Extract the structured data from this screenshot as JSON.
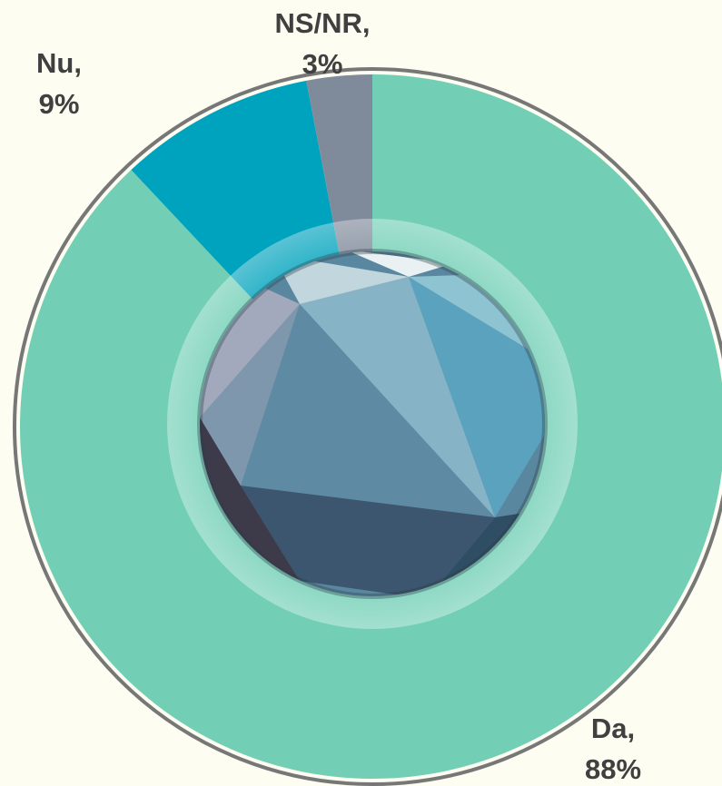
{
  "chart_data": {
    "type": "pie",
    "categories": [
      "Da,",
      "Nu,",
      "NS/NR,"
    ],
    "values": [
      88,
      9,
      3
    ],
    "value_labels": [
      "88%",
      "9%",
      "3%"
    ],
    "colors": [
      "#72cfb6",
      "#00a3bd",
      "#7f8a9b"
    ]
  }
}
